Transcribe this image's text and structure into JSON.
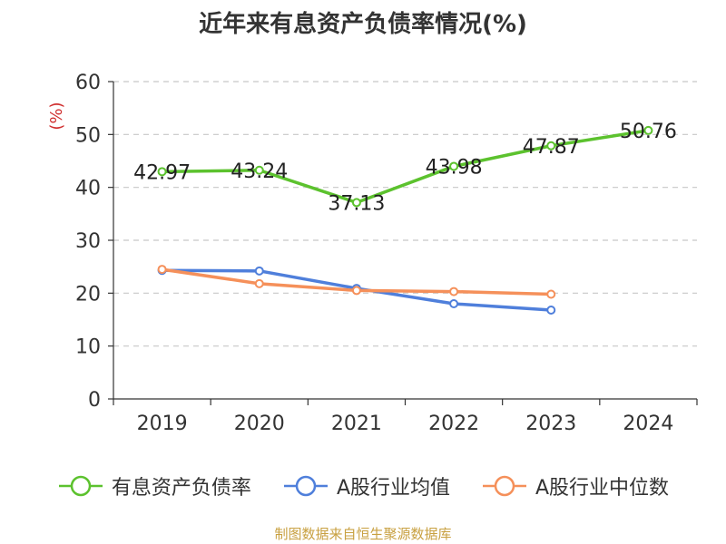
{
  "chart_data": {
    "type": "line",
    "title": "近年来有息资产负债率情况(%)",
    "ylabel": "(%)",
    "xlabel": "",
    "categories": [
      "2019",
      "2020",
      "2021",
      "2022",
      "2023",
      "2024"
    ],
    "ylim": [
      0,
      60
    ],
    "yticks": [
      0,
      10,
      20,
      30,
      40,
      50,
      60
    ],
    "grid": true,
    "legend_position": "bottom",
    "series": [
      {
        "name": "有息资产负债率",
        "color": "#5cc22e",
        "values": [
          42.97,
          43.24,
          37.13,
          43.98,
          47.87,
          50.76
        ],
        "labels": [
          "42.97",
          "43.24",
          "37.13",
          "43.98",
          "47.87",
          "50.76"
        ]
      },
      {
        "name": "A股行业均值",
        "color": "#4f7fdb",
        "values": [
          24.3,
          24.2,
          20.9,
          18.0,
          16.8,
          null
        ]
      },
      {
        "name": "A股行业中位数",
        "color": "#f5905a",
        "values": [
          24.5,
          21.8,
          20.5,
          20.3,
          19.8,
          null
        ]
      }
    ]
  },
  "footer": {
    "source": "制图数据来自恒生聚源数据库"
  }
}
